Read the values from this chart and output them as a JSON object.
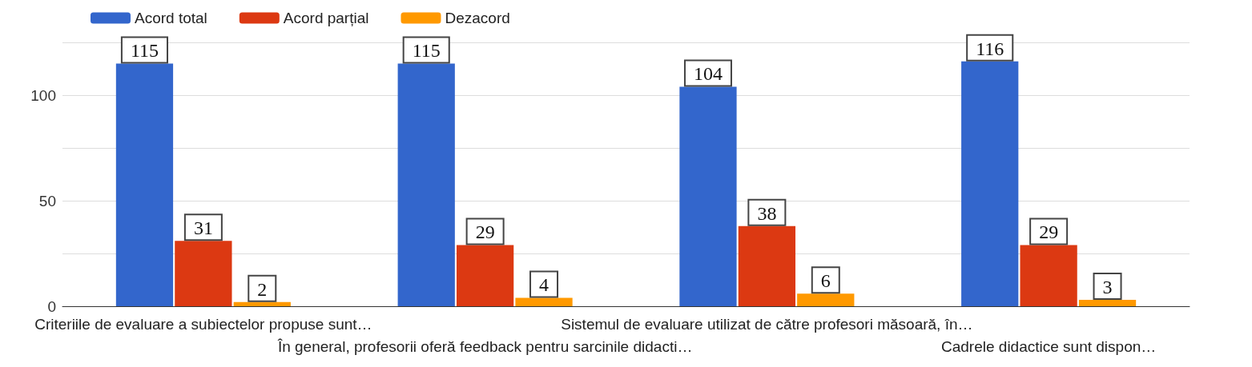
{
  "chart_data": {
    "type": "bar",
    "categories": [
      "Criteriile de evaluare a subiectelor propuse sunt…",
      "În general, profesorii oferă feedback pentru sarcinile didacti…",
      "Sistemul de evaluare utilizat de către profesori măsoară, în…",
      "Cadrele didactice sunt dispon…"
    ],
    "series": [
      {
        "name": "Acord total",
        "color": "#3366cc",
        "values": [
          115,
          115,
          104,
          116
        ]
      },
      {
        "name": "Acord parțial",
        "color": "#dc3912",
        "values": [
          31,
          29,
          38,
          29
        ]
      },
      {
        "name": "Dezacord",
        "color": "#ff9900",
        "values": [
          2,
          4,
          6,
          3
        ]
      }
    ],
    "ylim": [
      0,
      125
    ],
    "yticks": [
      0,
      {
        "value": 25,
        "label": null
      },
      50,
      {
        "value": 75,
        "label": null
      },
      100
    ],
    "grid": "y",
    "legend": "top left",
    "data_labels": true
  }
}
